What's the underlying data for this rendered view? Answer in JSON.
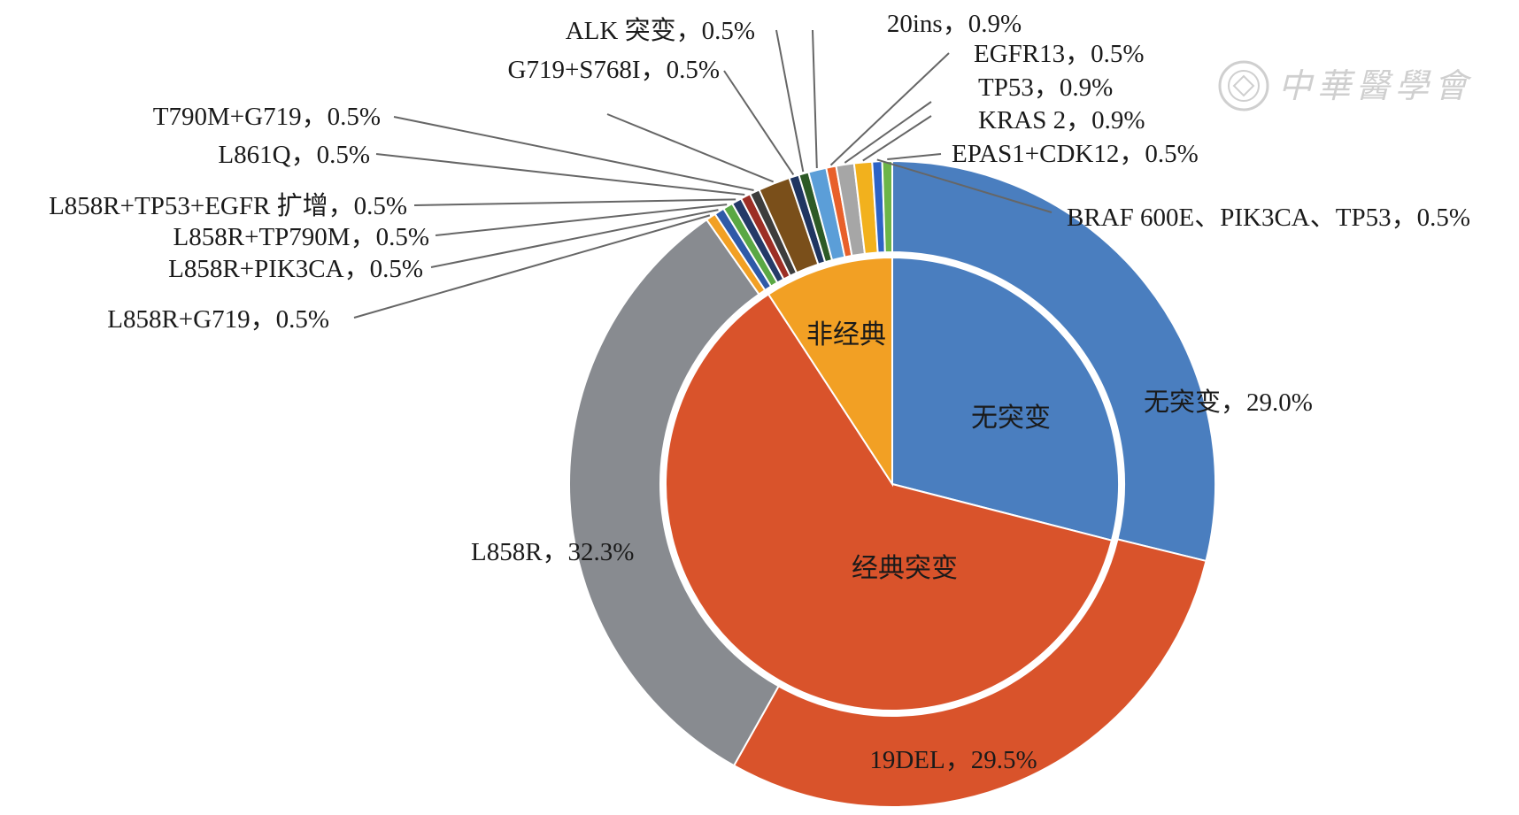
{
  "chart_data": {
    "type": "pie",
    "subtype": "nested-donut",
    "inner_ring": [
      {
        "label": "无突变",
        "value": 29.0,
        "color": "#4a7ebf"
      },
      {
        "label": "经典突变",
        "value": 61.8,
        "color": "#d9532b"
      },
      {
        "label": "非经典",
        "value": 9.2,
        "color": "#f2a024"
      }
    ],
    "outer_ring": [
      {
        "label": "无突变，29.0%",
        "value": 29.0,
        "color": "#4a7ebf"
      },
      {
        "label": "19DEL，29.5%",
        "value": 29.5,
        "color": "#d9532b"
      },
      {
        "label": "L858R，32.3%",
        "value": 32.3,
        "color": "#888b90"
      },
      {
        "label": "L858R+G719，0.5%",
        "value": 0.5,
        "color": "#f2a024"
      },
      {
        "label": "L858R+PIK3CA，0.5%",
        "value": 0.5,
        "color": "#2f5aa8"
      },
      {
        "label": "L858R+TP790M，0.5%",
        "value": 0.5,
        "color": "#5aa844"
      },
      {
        "label": "L858R+TP53+EGFR 扩增，0.5%",
        "value": 0.5,
        "color": "#243a68"
      },
      {
        "label": "L861Q，0.5%",
        "value": 0.5,
        "color": "#9c2e25"
      },
      {
        "label": "T790M+G719，0.5%",
        "value": 0.5,
        "color": "#3d3d3d"
      },
      {
        "label": "",
        "value": 1.6,
        "color": "#7a4f1a"
      },
      {
        "label": "G719+S768I，0.5%",
        "value": 0.5,
        "color": "#1f3561"
      },
      {
        "label": "ALK 突变，0.5%",
        "value": 0.5,
        "color": "#2d5a26"
      },
      {
        "label": "20ins，0.9%",
        "value": 0.9,
        "color": "#5b9ed8"
      },
      {
        "label": "EGFR13，0.5%",
        "value": 0.5,
        "color": "#e8602a"
      },
      {
        "label": "TP53，0.9%",
        "value": 0.9,
        "color": "#a6a6a6"
      },
      {
        "label": "KRAS 2，0.9%",
        "value": 0.9,
        "color": "#f2b11d"
      },
      {
        "label": "BRAF 600E、PIK3CA、TP53，0.5%",
        "value": 0.5,
        "color": "#2d63c6"
      },
      {
        "label": "EPAS1+CDK12，0.5%",
        "value": 0.5,
        "color": "#6cb548"
      }
    ]
  },
  "watermark": {
    "text": "中華醫學會"
  }
}
